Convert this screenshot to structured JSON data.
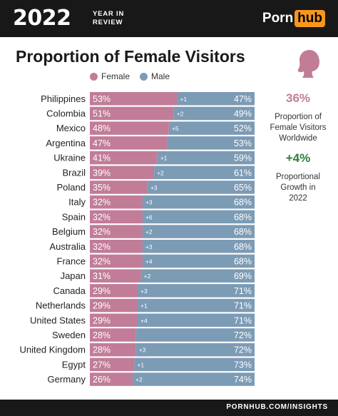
{
  "header": {
    "year": "2022",
    "subtitle_line1": "YEAR IN",
    "subtitle_line2": "REVIEW",
    "logo_part1": "Porn",
    "logo_part2": "hub"
  },
  "colors": {
    "female": "#c17c98",
    "male": "#7c9bb5",
    "accent_female": "#c17c98",
    "accent_growth": "#2f7d3a"
  },
  "side": {
    "stat1_value": "36%",
    "stat1_label1": "Proportion of",
    "stat1_label2": "Female Visitors",
    "stat1_label3": "Worldwide",
    "stat2_value": "+4%",
    "stat2_label1": "Proportional",
    "stat2_label2": "Growth in",
    "stat2_label3": "2022",
    "icon": "woman-silhouette-icon"
  },
  "footer": {
    "text": "PORNHUB.COM/INSIGHTS"
  },
  "chart_data": {
    "type": "bar",
    "title": "Proportion of Female Visitors",
    "legend": [
      "Female",
      "Male"
    ],
    "categories": [
      "Philippines",
      "Colombia",
      "Mexico",
      "Argentina",
      "Ukraine",
      "Brazil",
      "Poland",
      "Italy",
      "Spain",
      "Belgium",
      "Australia",
      "France",
      "Japan",
      "Canada",
      "Netherlands",
      "United States",
      "Sweden",
      "United Kingdom",
      "Egypt",
      "Germany"
    ],
    "series": [
      {
        "name": "Female",
        "values": [
          53,
          51,
          48,
          47,
          41,
          39,
          35,
          32,
          32,
          32,
          32,
          32,
          31,
          29,
          29,
          29,
          28,
          28,
          27,
          26
        ],
        "labels": [
          "53%",
          "51%",
          "48%",
          "47%",
          "41%",
          "39%",
          "35%",
          "32%",
          "32%",
          "32%",
          "32%",
          "32%",
          "31%",
          "29%",
          "29%",
          "29%",
          "28%",
          "28%",
          "27%",
          "26%"
        ]
      },
      {
        "name": "Male",
        "values": [
          47,
          49,
          52,
          53,
          59,
          61,
          65,
          68,
          68,
          68,
          68,
          68,
          69,
          71,
          71,
          71,
          72,
          72,
          73,
          74
        ],
        "labels": [
          "47%",
          "49%",
          "52%",
          "53%",
          "59%",
          "61%",
          "65%",
          "68%",
          "68%",
          "68%",
          "68%",
          "68%",
          "69%",
          "71%",
          "71%",
          "71%",
          "72%",
          "72%",
          "73%",
          "74%"
        ]
      }
    ],
    "change_labels": [
      "+1",
      "+2",
      "+5",
      "",
      "+1",
      "+2",
      "+3",
      "+3",
      "+6",
      "+2",
      "+3",
      "+4",
      "+2",
      "+3",
      "+1",
      "+4",
      "",
      "+3",
      "+1",
      "+2"
    ],
    "stacked": true,
    "xlim": [
      0,
      100
    ]
  }
}
